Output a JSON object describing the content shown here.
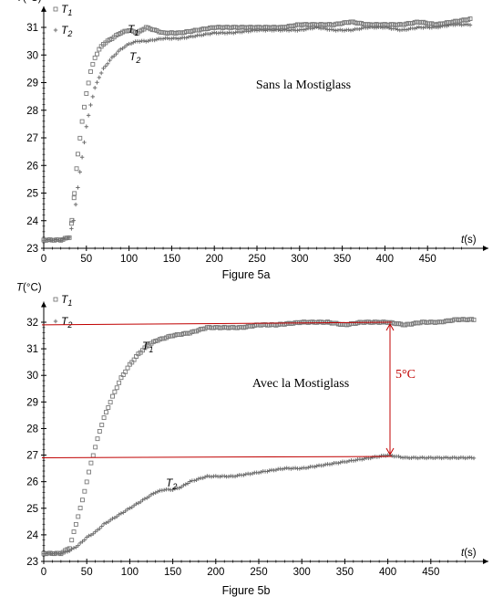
{
  "chart_data": [
    {
      "type": "scatter",
      "caption": "Figure 5a",
      "annotation": "Sans la Mostiglass",
      "xlabel": "t(s)",
      "ylabel": "T(°C)",
      "xlim": [
        0,
        500
      ],
      "ylim": [
        23,
        31.5
      ],
      "xticks": [
        0,
        50,
        100,
        150,
        200,
        250,
        300,
        350,
        400,
        450
      ],
      "yticks": [
        23,
        24,
        25,
        26,
        27,
        28,
        29,
        30,
        31
      ],
      "legend": [
        "T1",
        "T2"
      ],
      "series": [
        {
          "name": "T1",
          "marker": "square",
          "x": [
            0,
            10,
            20,
            30,
            33,
            36,
            40,
            45,
            50,
            55,
            60,
            65,
            70,
            80,
            90,
            100,
            110,
            120,
            140,
            160,
            180,
            200,
            220,
            250,
            280,
            300,
            320,
            340,
            360,
            380,
            400,
            420,
            440,
            460,
            480,
            500
          ],
          "y": [
            23.3,
            23.3,
            23.3,
            23.4,
            24.0,
            25.0,
            26.4,
            27.6,
            28.6,
            29.4,
            29.9,
            30.2,
            30.4,
            30.6,
            30.8,
            30.9,
            30.8,
            31.0,
            30.8,
            30.8,
            30.9,
            31.0,
            31.0,
            31.0,
            31.0,
            31.1,
            31.1,
            31.1,
            31.2,
            31.1,
            31.1,
            31.1,
            31.2,
            31.1,
            31.2,
            31.3
          ]
        },
        {
          "name": "T2",
          "marker": "plus",
          "x": [
            0,
            10,
            20,
            30,
            35,
            40,
            45,
            50,
            55,
            60,
            65,
            70,
            80,
            90,
            100,
            110,
            120,
            140,
            160,
            180,
            200,
            220,
            250,
            280,
            300,
            320,
            340,
            360,
            380,
            400,
            420,
            440,
            460,
            480,
            500
          ],
          "y": [
            23.3,
            23.3,
            23.3,
            23.4,
            24.0,
            25.2,
            26.3,
            27.4,
            28.2,
            28.8,
            29.2,
            29.5,
            29.9,
            30.2,
            30.4,
            30.5,
            30.5,
            30.6,
            30.6,
            30.7,
            30.8,
            30.8,
            30.9,
            30.9,
            30.9,
            31.0,
            30.9,
            30.9,
            31.0,
            31.0,
            30.9,
            31.0,
            31.0,
            31.1,
            31.1
          ]
        }
      ]
    },
    {
      "type": "scatter",
      "caption": "Figure 5b",
      "annotation": "Avec la Mostiglass",
      "delta_label": "5°C",
      "xlabel": "t(s)",
      "ylabel": "T(°C)",
      "xlim": [
        0,
        500
      ],
      "ylim": [
        23,
        32.5
      ],
      "xticks": [
        0,
        50,
        100,
        150,
        200,
        250,
        300,
        350,
        400,
        450
      ],
      "yticks": [
        23,
        24,
        25,
        26,
        27,
        28,
        29,
        30,
        31,
        32
      ],
      "legend": [
        "T1",
        "T2"
      ],
      "series": [
        {
          "name": "T1",
          "marker": "square",
          "x": [
            0,
            10,
            20,
            30,
            35,
            40,
            45,
            50,
            55,
            60,
            65,
            70,
            80,
            90,
            100,
            110,
            120,
            130,
            140,
            150,
            170,
            190,
            210,
            230,
            250,
            270,
            300,
            330,
            350,
            370,
            390,
            400,
            420,
            440,
            460,
            480,
            500
          ],
          "y": [
            23.3,
            23.3,
            23.3,
            23.5,
            24.1,
            24.7,
            25.3,
            26.0,
            26.7,
            27.3,
            27.9,
            28.4,
            29.2,
            29.9,
            30.4,
            30.8,
            31.1,
            31.3,
            31.4,
            31.5,
            31.6,
            31.8,
            31.8,
            31.8,
            31.9,
            31.9,
            32.0,
            32.0,
            31.9,
            32.0,
            32.0,
            32.0,
            31.9,
            32.0,
            32.0,
            32.1,
            32.1
          ]
        },
        {
          "name": "T2",
          "marker": "plus",
          "x": [
            0,
            10,
            20,
            30,
            40,
            50,
            60,
            70,
            80,
            90,
            100,
            110,
            120,
            130,
            140,
            150,
            160,
            170,
            180,
            190,
            200,
            220,
            240,
            260,
            280,
            300,
            320,
            340,
            360,
            380,
            400,
            420,
            440,
            460,
            480,
            500
          ],
          "y": [
            23.3,
            23.3,
            23.3,
            23.4,
            23.6,
            23.9,
            24.1,
            24.4,
            24.6,
            24.8,
            25.0,
            25.2,
            25.4,
            25.6,
            25.7,
            25.7,
            25.8,
            26.0,
            26.1,
            26.2,
            26.2,
            26.2,
            26.3,
            26.4,
            26.5,
            26.5,
            26.6,
            26.7,
            26.8,
            26.9,
            27.0,
            26.9,
            26.9,
            26.9,
            26.9,
            26.9
          ]
        }
      ]
    }
  ]
}
